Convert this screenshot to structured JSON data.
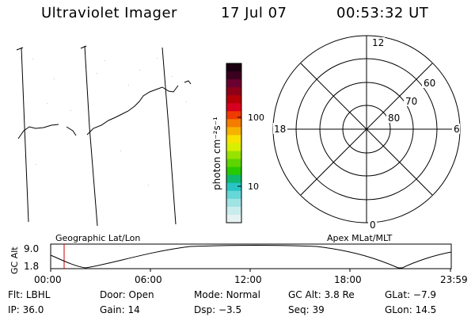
{
  "header": {
    "title": "Ultraviolet Imager",
    "date": "17 Jul 07",
    "time": "00:53:32 UT"
  },
  "colorbar": {
    "unit_label": "photon cm⁻²s⁻¹",
    "tick_labels": [
      "100",
      "10"
    ],
    "colors": [
      "#1a0010",
      "#3b001f",
      "#6a0030",
      "#8e0018",
      "#b50008",
      "#d8001f",
      "#ef3a00",
      "#f47d00",
      "#f7b200",
      "#f8e200",
      "#d8ef00",
      "#98e200",
      "#5ed400",
      "#27c900",
      "#0fb86e",
      "#29c4c4",
      "#66d6d6",
      "#9fe3e3",
      "#c9ecec",
      "#e6f2f2"
    ]
  },
  "polar_plot": {
    "clock_labels": [
      "12",
      "18",
      "6",
      "0"
    ],
    "lat_labels": [
      "60",
      "70",
      "80"
    ]
  },
  "timeline": {
    "y_axis_label": "GC Alt",
    "y_ticks": [
      "9.0",
      "1.8"
    ],
    "left_label": "Geographic Lat/Lon",
    "right_label": "Apex MLat/MLT",
    "x_ticks": [
      "00:00",
      "06:00",
      "12:00",
      "18:00",
      "23:59"
    ],
    "marker_color": "#cc0000"
  },
  "status": {
    "flt": {
      "label": "Flt:",
      "value": "LBHL"
    },
    "ip": {
      "label": "IP:",
      "value": "36.0"
    },
    "door": {
      "label": "Door:",
      "value": "Open"
    },
    "gain": {
      "label": "Gain:",
      "value": "14"
    },
    "mode": {
      "label": "Mode:",
      "value": "Normal"
    },
    "dsp": {
      "label": "Dsp:",
      "value": "−3.5"
    },
    "gcalt": {
      "label": "GC Alt:",
      "value": "3.8 Re"
    },
    "seq": {
      "label": "Seq:",
      "value": "39"
    },
    "glat": {
      "label": "GLat:",
      "value": "−7.9"
    },
    "glon": {
      "label": "GLon:",
      "value": "14.5"
    }
  }
}
